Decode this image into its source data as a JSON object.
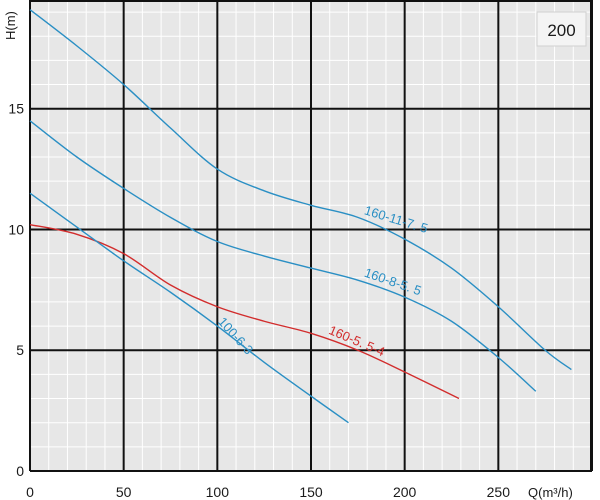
{
  "chart_data": {
    "type": "line",
    "title": "",
    "badge": "200",
    "xlabel": "Q(m³/h)",
    "ylabel": "H(m)",
    "xlim": [
      0,
      300
    ],
    "ylim": [
      0,
      19.5
    ],
    "x_ticks": [
      0,
      50,
      100,
      150,
      200,
      250
    ],
    "x_tick_labels": [
      "0",
      "50",
      "100",
      "150",
      "200",
      "250"
    ],
    "y_ticks": [
      0,
      5,
      10,
      15
    ],
    "y_tick_labels": [
      "0",
      "5",
      "10",
      "15"
    ],
    "grid": true,
    "legend": "none",
    "series": [
      {
        "name": "160-11-7.5",
        "label_text": "160-11-7. 5",
        "color": "#2a8fc4",
        "points": [
          [
            0,
            19.1
          ],
          [
            25,
            17.6
          ],
          [
            50,
            16.0
          ],
          [
            75,
            14.2
          ],
          [
            100,
            12.5
          ],
          [
            125,
            11.6
          ],
          [
            150,
            11.0
          ],
          [
            175,
            10.5
          ],
          [
            200,
            9.6
          ],
          [
            225,
            8.4
          ],
          [
            250,
            6.8
          ],
          [
            275,
            5.0
          ],
          [
            289,
            4.2
          ]
        ]
      },
      {
        "name": "160-8-5.5",
        "label_text": "160-8-5. 5",
        "color": "#2a8fc4",
        "points": [
          [
            0,
            14.5
          ],
          [
            25,
            13.0
          ],
          [
            50,
            11.7
          ],
          [
            75,
            10.5
          ],
          [
            100,
            9.5
          ],
          [
            125,
            8.9
          ],
          [
            150,
            8.4
          ],
          [
            175,
            7.9
          ],
          [
            200,
            7.2
          ],
          [
            225,
            6.2
          ],
          [
            250,
            4.7
          ],
          [
            270,
            3.3
          ]
        ]
      },
      {
        "name": "160-5.5-4",
        "label_text": "160-5. 5-4",
        "color": "#d22d2d",
        "points": [
          [
            0,
            10.2
          ],
          [
            25,
            9.8
          ],
          [
            50,
            9.0
          ],
          [
            75,
            7.7
          ],
          [
            100,
            6.8
          ],
          [
            125,
            6.2
          ],
          [
            150,
            5.7
          ],
          [
            175,
            5.0
          ],
          [
            200,
            4.1
          ],
          [
            229,
            3.0
          ]
        ]
      },
      {
        "name": "100-6-3",
        "label_text": "100-6-3",
        "color": "#2a8fc4",
        "points": [
          [
            0,
            11.5
          ],
          [
            25,
            10.1
          ],
          [
            50,
            8.7
          ],
          [
            75,
            7.4
          ],
          [
            100,
            6.0
          ],
          [
            125,
            4.5
          ],
          [
            150,
            3.1
          ],
          [
            170,
            2.0
          ]
        ]
      }
    ]
  }
}
